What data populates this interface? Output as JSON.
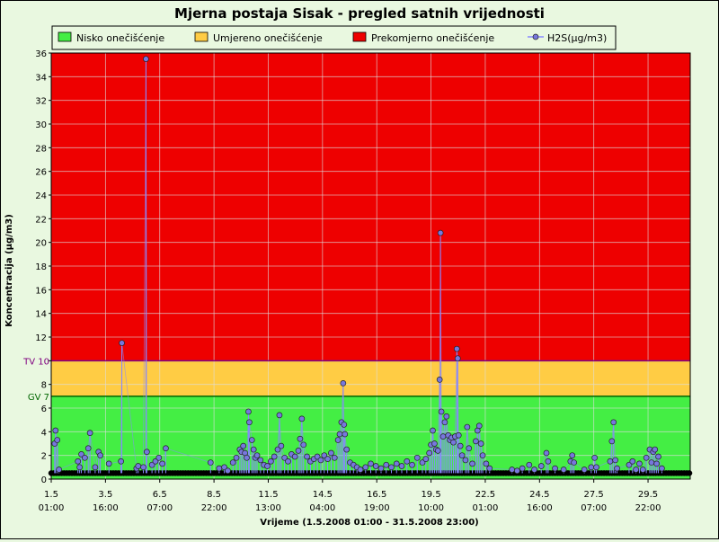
{
  "chart_data": {
    "type": "line",
    "title": "Mjerna postaja Sisak - pregled satnih vrijednosti",
    "xlabel": "Vrijeme (1.5.2008 01:00 - 31.5.2008 23:00)",
    "ylabel": "Koncentracija (µg/m3)",
    "ylim": [
      0,
      36
    ],
    "xlim": [
      "2008-05-01 01:00",
      "2008-05-31 23:00"
    ],
    "yticks": [
      0,
      2,
      4,
      6,
      8,
      10,
      12,
      14,
      16,
      18,
      20,
      22,
      24,
      26,
      28,
      30,
      32,
      34,
      36
    ],
    "xticks": [
      {
        "date": "1.5",
        "time": "01:00",
        "x": "2008-05-01 01:00"
      },
      {
        "date": "3.5",
        "time": "16:00",
        "x": "2008-05-03 16:00"
      },
      {
        "date": "6.5",
        "time": "07:00",
        "x": "2008-05-06 07:00"
      },
      {
        "date": "8.5",
        "time": "22:00",
        "x": "2008-05-08 22:00"
      },
      {
        "date": "11.5",
        "time": "13:00",
        "x": "2008-05-11 13:00"
      },
      {
        "date": "14.5",
        "time": "04:00",
        "x": "2008-05-14 04:00"
      },
      {
        "date": "16.5",
        "time": "19:00",
        "x": "2008-05-16 19:00"
      },
      {
        "date": "19.5",
        "time": "10:00",
        "x": "2008-05-19 10:00"
      },
      {
        "date": "22.5",
        "time": "01:00",
        "x": "2008-05-22 01:00"
      },
      {
        "date": "24.5",
        "time": "16:00",
        "x": "2008-05-24 16:00"
      },
      {
        "date": "27.5",
        "time": "07:00",
        "x": "2008-05-27 07:00"
      },
      {
        "date": "29.5",
        "time": "22:00",
        "x": "2008-05-29 22:00"
      }
    ],
    "zones": [
      {
        "name": "Nisko onečišćenje",
        "from": 0,
        "to": 7,
        "color": "#44ee44"
      },
      {
        "name": "Umjereno onečišćenje",
        "from": 7,
        "to": 10,
        "color": "#ffcc44"
      },
      {
        "name": "Prekomjerno onečišćenje",
        "from": 10,
        "to": 36,
        "color": "#ee0000"
      }
    ],
    "thresholds": [
      {
        "label": "TV 10",
        "value": 10,
        "color": "#800080"
      },
      {
        "label": "GV 7",
        "value": 7,
        "color": "#006600"
      }
    ],
    "legend": {
      "placement": "top",
      "items": [
        {
          "label": "Nisko onečišćenje",
          "kind": "box",
          "color": "#44ee44"
        },
        {
          "label": "Umjereno onečišćenje",
          "kind": "box",
          "color": "#ffcc44"
        },
        {
          "label": "Prekomjerno onečišćenje",
          "kind": "box",
          "color": "#ee0000"
        },
        {
          "label": "H2S(µg/m3)",
          "kind": "line",
          "color": "#8888ff"
        }
      ]
    },
    "grid": true,
    "series": [
      {
        "name": "H2S(µg/m3)",
        "color": "#8888ff",
        "marker_fill": "#7777dd",
        "baseline": 0.5,
        "points": [
          [
            "2008-05-01 05:00",
            3.0
          ],
          [
            "2008-05-01 06:00",
            4.1
          ],
          [
            "2008-05-01 08:00",
            3.3
          ],
          [
            "2008-05-01 10:00",
            0.8
          ],
          [
            "2008-05-02 08:00",
            1.5
          ],
          [
            "2008-05-02 10:00",
            1.0
          ],
          [
            "2008-05-02 12:00",
            2.1
          ],
          [
            "2008-05-02 16:00",
            1.8
          ],
          [
            "2008-05-02 20:00",
            2.6
          ],
          [
            "2008-05-02 22:00",
            3.9
          ],
          [
            "2008-05-03 04:00",
            1.0
          ],
          [
            "2008-05-03 08:00",
            2.3
          ],
          [
            "2008-05-03 10:00",
            2.0
          ],
          [
            "2008-05-03 20:00",
            1.3
          ],
          [
            "2008-05-04 10:00",
            1.5
          ],
          [
            "2008-05-04 11:00",
            11.5
          ],
          [
            "2008-05-05 04:00",
            0.9
          ],
          [
            "2008-05-05 06:00",
            1.1
          ],
          [
            "2008-05-05 12:00",
            1.0
          ],
          [
            "2008-05-05 15:00",
            35.5
          ],
          [
            "2008-05-05 16:00",
            2.3
          ],
          [
            "2008-05-05 22:00",
            1.2
          ],
          [
            "2008-05-06 02:00",
            1.5
          ],
          [
            "2008-05-06 06:00",
            1.8
          ],
          [
            "2008-05-06 10:00",
            1.3
          ],
          [
            "2008-05-06 14:00",
            2.6
          ],
          [
            "2008-05-08 18:00",
            1.4
          ],
          [
            "2008-05-09 04:00",
            0.9
          ],
          [
            "2008-05-09 10:00",
            1.0
          ],
          [
            "2008-05-09 14:00",
            0.7
          ],
          [
            "2008-05-09 20:00",
            1.4
          ],
          [
            "2008-05-10 00:00",
            1.8
          ],
          [
            "2008-05-10 04:00",
            2.5
          ],
          [
            "2008-05-10 06:00",
            2.3
          ],
          [
            "2008-05-10 08:00",
            2.8
          ],
          [
            "2008-05-10 10:00",
            2.2
          ],
          [
            "2008-05-10 12:00",
            1.8
          ],
          [
            "2008-05-10 14:00",
            5.7
          ],
          [
            "2008-05-10 15:00",
            4.8
          ],
          [
            "2008-05-10 18:00",
            3.3
          ],
          [
            "2008-05-10 20:00",
            2.5
          ],
          [
            "2008-05-10 22:00",
            1.8
          ],
          [
            "2008-05-11 00:00",
            2.0
          ],
          [
            "2008-05-11 04:00",
            1.6
          ],
          [
            "2008-05-11 08:00",
            1.2
          ],
          [
            "2008-05-11 12:00",
            1.1
          ],
          [
            "2008-05-11 16:00",
            1.5
          ],
          [
            "2008-05-11 20:00",
            1.9
          ],
          [
            "2008-05-12 00:00",
            2.5
          ],
          [
            "2008-05-12 02:00",
            5.4
          ],
          [
            "2008-05-12 04:00",
            2.8
          ],
          [
            "2008-05-12 08:00",
            1.8
          ],
          [
            "2008-05-12 12:00",
            1.5
          ],
          [
            "2008-05-12 16:00",
            2.1
          ],
          [
            "2008-05-12 20:00",
            1.9
          ],
          [
            "2008-05-13 00:00",
            2.4
          ],
          [
            "2008-05-13 02:00",
            3.4
          ],
          [
            "2008-05-13 04:00",
            5.1
          ],
          [
            "2008-05-13 06:00",
            2.9
          ],
          [
            "2008-05-13 10:00",
            1.9
          ],
          [
            "2008-05-13 14:00",
            1.5
          ],
          [
            "2008-05-13 18:00",
            1.7
          ],
          [
            "2008-05-13 22:00",
            1.9
          ],
          [
            "2008-05-14 02:00",
            1.6
          ],
          [
            "2008-05-14 06:00",
            2.0
          ],
          [
            "2008-05-14 10:00",
            1.7
          ],
          [
            "2008-05-14 14:00",
            2.2
          ],
          [
            "2008-05-14 18:00",
            1.8
          ],
          [
            "2008-05-14 22:00",
            3.3
          ],
          [
            "2008-05-15 00:00",
            3.8
          ],
          [
            "2008-05-15 02:00",
            4.8
          ],
          [
            "2008-05-15 04:00",
            8.1
          ],
          [
            "2008-05-15 05:00",
            4.6
          ],
          [
            "2008-05-15 06:00",
            3.8
          ],
          [
            "2008-05-15 08:00",
            2.5
          ],
          [
            "2008-05-15 12:00",
            1.4
          ],
          [
            "2008-05-15 16:00",
            1.2
          ],
          [
            "2008-05-15 20:00",
            1.0
          ],
          [
            "2008-05-16 00:00",
            0.8
          ],
          [
            "2008-05-16 06:00",
            1.0
          ],
          [
            "2008-05-16 12:00",
            1.3
          ],
          [
            "2008-05-16 18:00",
            1.1
          ],
          [
            "2008-05-17 00:00",
            0.9
          ],
          [
            "2008-05-17 06:00",
            1.2
          ],
          [
            "2008-05-17 12:00",
            1.0
          ],
          [
            "2008-05-17 18:00",
            1.3
          ],
          [
            "2008-05-18 00:00",
            1.1
          ],
          [
            "2008-05-18 06:00",
            1.5
          ],
          [
            "2008-05-18 12:00",
            1.2
          ],
          [
            "2008-05-18 18:00",
            1.8
          ],
          [
            "2008-05-19 00:00",
            1.4
          ],
          [
            "2008-05-19 04:00",
            1.7
          ],
          [
            "2008-05-19 08:00",
            2.2
          ],
          [
            "2008-05-19 10:00",
            2.9
          ],
          [
            "2008-05-19 12:00",
            4.1
          ],
          [
            "2008-05-19 14:00",
            3.0
          ],
          [
            "2008-05-19 16:00",
            2.5
          ],
          [
            "2008-05-19 18:00",
            2.4
          ],
          [
            "2008-05-19 20:00",
            8.4
          ],
          [
            "2008-05-19 21:00",
            20.8
          ],
          [
            "2008-05-19 22:00",
            5.7
          ],
          [
            "2008-05-20 00:00",
            3.6
          ],
          [
            "2008-05-20 02:00",
            4.8
          ],
          [
            "2008-05-20 04:00",
            5.3
          ],
          [
            "2008-05-20 06:00",
            3.7
          ],
          [
            "2008-05-20 08:00",
            3.3
          ],
          [
            "2008-05-20 10:00",
            3.5
          ],
          [
            "2008-05-20 12:00",
            3.1
          ],
          [
            "2008-05-20 14:00",
            3.6
          ],
          [
            "2008-05-20 16:00",
            11.0
          ],
          [
            "2008-05-20 17:00",
            10.2
          ],
          [
            "2008-05-20 18:00",
            3.7
          ],
          [
            "2008-05-20 20:00",
            2.8
          ],
          [
            "2008-05-20 22:00",
            2.0
          ],
          [
            "2008-05-21 02:00",
            1.6
          ],
          [
            "2008-05-21 04:00",
            4.4
          ],
          [
            "2008-05-21 06:00",
            2.6
          ],
          [
            "2008-05-21 10:00",
            1.3
          ],
          [
            "2008-05-21 14:00",
            3.2
          ],
          [
            "2008-05-21 16:00",
            4.1
          ],
          [
            "2008-05-21 18:00",
            4.5
          ],
          [
            "2008-05-21 20:00",
            3.0
          ],
          [
            "2008-05-21 22:00",
            2.0
          ],
          [
            "2008-05-22 02:00",
            1.3
          ],
          [
            "2008-05-22 06:00",
            0.9
          ],
          [
            "2008-05-23 08:00",
            0.8
          ],
          [
            "2008-05-23 14:00",
            0.7
          ],
          [
            "2008-05-23 20:00",
            0.9
          ],
          [
            "2008-05-24 04:00",
            1.2
          ],
          [
            "2008-05-24 10:00",
            0.8
          ],
          [
            "2008-05-24 18:00",
            1.1
          ],
          [
            "2008-05-25 00:00",
            2.2
          ],
          [
            "2008-05-25 02:00",
            1.5
          ],
          [
            "2008-05-25 10:00",
            0.9
          ],
          [
            "2008-05-25 20:00",
            0.8
          ],
          [
            "2008-05-26 04:00",
            1.5
          ],
          [
            "2008-05-26 06:00",
            2.0
          ],
          [
            "2008-05-26 08:00",
            1.4
          ],
          [
            "2008-05-26 20:00",
            0.8
          ],
          [
            "2008-05-27 04:00",
            1.0
          ],
          [
            "2008-05-27 08:00",
            1.8
          ],
          [
            "2008-05-27 10:00",
            1.0
          ],
          [
            "2008-05-28 02:00",
            1.5
          ],
          [
            "2008-05-28 04:00",
            3.2
          ],
          [
            "2008-05-28 06:00",
            4.8
          ],
          [
            "2008-05-28 08:00",
            1.6
          ],
          [
            "2008-05-28 10:00",
            0.9
          ],
          [
            "2008-05-29 00:00",
            1.2
          ],
          [
            "2008-05-29 04:00",
            1.5
          ],
          [
            "2008-05-29 08:00",
            0.8
          ],
          [
            "2008-05-29 12:00",
            1.3
          ],
          [
            "2008-05-29 16:00",
            0.8
          ],
          [
            "2008-05-29 20:00",
            1.8
          ],
          [
            "2008-05-30 00:00",
            2.5
          ],
          [
            "2008-05-30 02:00",
            1.4
          ],
          [
            "2008-05-30 04:00",
            2.3
          ],
          [
            "2008-05-30 06:00",
            2.5
          ],
          [
            "2008-05-30 08:00",
            1.3
          ],
          [
            "2008-05-30 10:00",
            1.9
          ],
          [
            "2008-05-30 14:00",
            0.9
          ]
        ]
      }
    ]
  }
}
